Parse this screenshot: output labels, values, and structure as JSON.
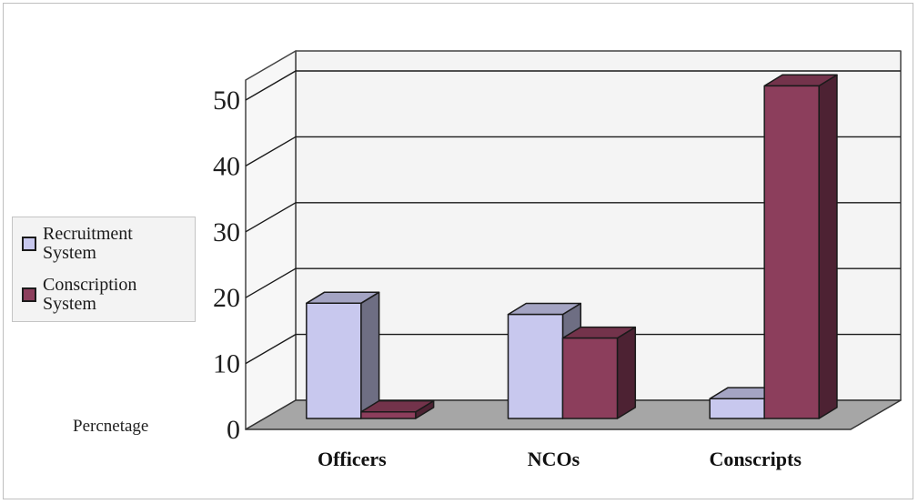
{
  "chart_data": {
    "type": "bar",
    "categories": [
      "Officers",
      "NCOs",
      "Conscripts"
    ],
    "series": [
      {
        "name": "Recruitment\nSystem",
        "values": [
          17.5,
          15.8,
          3.0
        ],
        "color": "#c8c8ee"
      },
      {
        "name": "Conscription\nSystem",
        "values": [
          1.0,
          12.2,
          50.5
        ],
        "color": "#8c3e5c"
      }
    ],
    "ylabel": "Percnetage",
    "yticks": [
      "0",
      "10",
      "20",
      "30",
      "40",
      "50"
    ],
    "ylim": [
      0,
      50
    ],
    "grid": true,
    "legend_position": "left",
    "three_d": true,
    "floor_color": "#a6a6a6",
    "wall_color": "#f4f4f4"
  }
}
